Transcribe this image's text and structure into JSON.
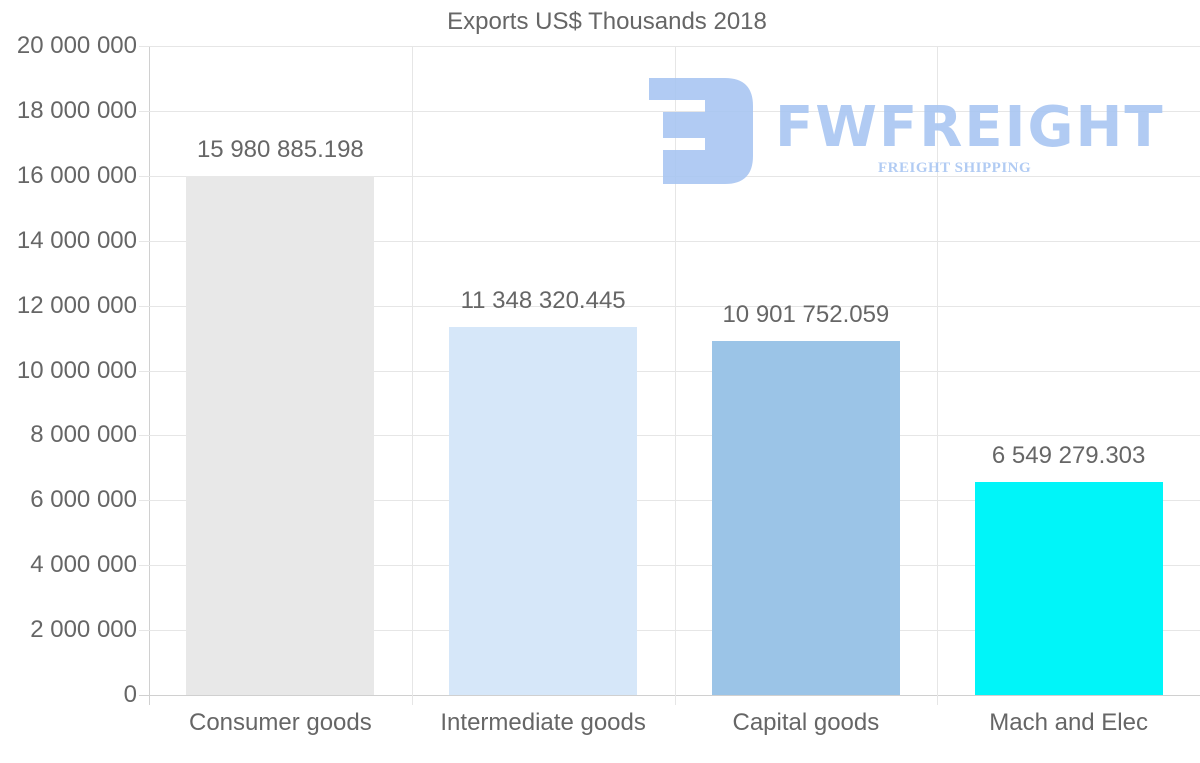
{
  "chart_data": {
    "type": "bar",
    "title": "Exports US$ Thousands 2018",
    "xlabel": "",
    "ylabel": "",
    "categories": [
      "Consumer goods",
      "Intermediate goods",
      "Capital goods",
      "Mach and Elec"
    ],
    "values": [
      15980885.198,
      11348320.445,
      10901752.059,
      6549279.303
    ],
    "value_labels": [
      "15 980 885.198",
      "11 348 320.445",
      "10 901 752.059",
      "6 549 279.303"
    ],
    "bar_colors": [
      "#e8e8e8",
      "#d6e7f9",
      "#9bc4e7",
      "#00f5f9"
    ],
    "ylim": [
      0,
      20000000
    ],
    "yticks": [
      0,
      2000000,
      4000000,
      6000000,
      8000000,
      10000000,
      12000000,
      14000000,
      16000000,
      18000000,
      20000000
    ],
    "ytick_labels": [
      "0",
      "2 000 000",
      "4 000 000",
      "6 000 000",
      "8 000 000",
      "10 000 000",
      "12 000 000",
      "14 000 000",
      "16 000 000",
      "18 000 000",
      "20 000 000"
    ],
    "grid": true,
    "legend": null
  },
  "watermark": {
    "brand": "FWFREIGHT",
    "tagline": "FREIGHT SHIPPING",
    "color": "#a9c6f2"
  }
}
